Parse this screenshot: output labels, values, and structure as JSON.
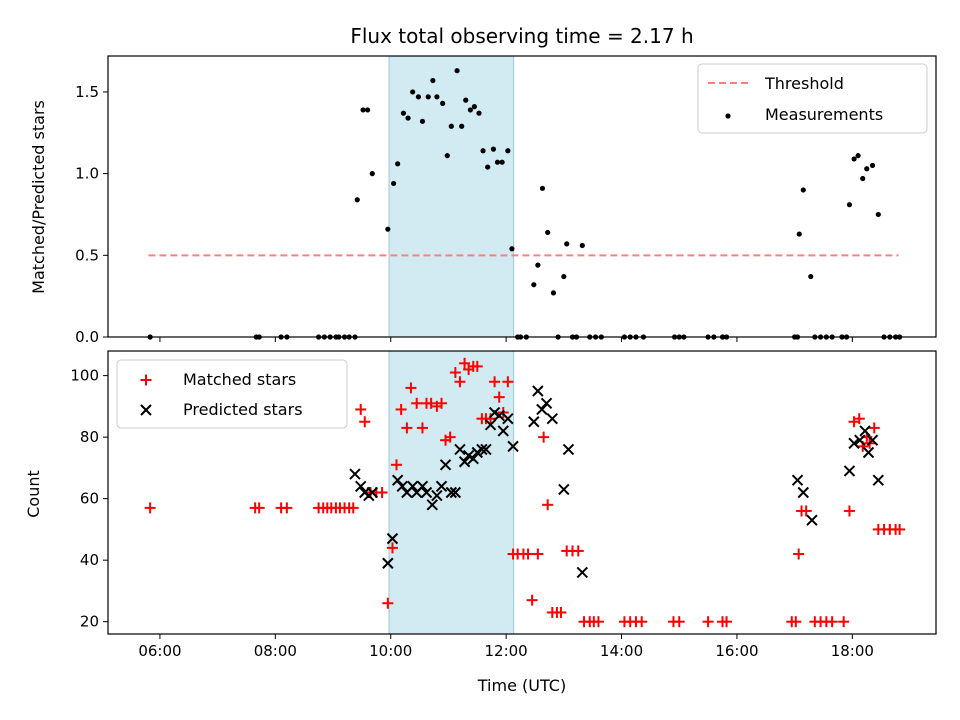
{
  "chart_data": [
    {
      "type": "scatter",
      "title": "Flux total observing time = 2.17 h",
      "ylabel": "Matched/Predicted stars",
      "xlabel": "",
      "ylim": [
        0,
        1.72
      ],
      "yticks": [
        "0.0",
        "0.5",
        "1.0",
        "1.5"
      ],
      "shaded_span": {
        "start_hour": 9.97,
        "end_hour": 12.13,
        "color": "#add8e6"
      },
      "threshold": {
        "name": "Threshold",
        "value": 0.5,
        "x_start_hour": 5.8,
        "x_end_hour": 18.8,
        "color": "#ff7f7f"
      },
      "legend": [
        "Threshold",
        "Measurements"
      ],
      "legend_position": "upper right",
      "series": [
        {
          "name": "Measurements",
          "color": "#000000",
          "points": [
            [
              5.83,
              0
            ],
            [
              7.67,
              0
            ],
            [
              7.72,
              0
            ],
            [
              8.1,
              0
            ],
            [
              8.2,
              0
            ],
            [
              8.75,
              0
            ],
            [
              8.85,
              0
            ],
            [
              8.95,
              0
            ],
            [
              9.05,
              0
            ],
            [
              9.1,
              0
            ],
            [
              9.2,
              0
            ],
            [
              9.28,
              0
            ],
            [
              9.38,
              0
            ],
            [
              9.42,
              0.84
            ],
            [
              9.52,
              1.39
            ],
            [
              9.6,
              1.39
            ],
            [
              9.68,
              1.0
            ],
            [
              9.95,
              0.66
            ],
            [
              10.05,
              0.94
            ],
            [
              10.12,
              1.06
            ],
            [
              10.22,
              1.37
            ],
            [
              10.3,
              1.34
            ],
            [
              10.38,
              1.5
            ],
            [
              10.48,
              1.47
            ],
            [
              10.55,
              1.32
            ],
            [
              10.65,
              1.47
            ],
            [
              10.73,
              1.57
            ],
            [
              10.8,
              1.47
            ],
            [
              10.9,
              1.43
            ],
            [
              10.98,
              1.11
            ],
            [
              11.05,
              1.29
            ],
            [
              11.15,
              1.63
            ],
            [
              11.23,
              1.29
            ],
            [
              11.3,
              1.45
            ],
            [
              11.38,
              1.39
            ],
            [
              11.45,
              1.41
            ],
            [
              11.53,
              1.37
            ],
            [
              11.6,
              1.14
            ],
            [
              11.68,
              1.04
            ],
            [
              11.78,
              1.15
            ],
            [
              11.85,
              1.07
            ],
            [
              11.93,
              1.07
            ],
            [
              12.03,
              1.14
            ],
            [
              12.1,
              0.54
            ],
            [
              12.2,
              0
            ],
            [
              12.25,
              0
            ],
            [
              12.35,
              0
            ],
            [
              12.48,
              0.32
            ],
            [
              12.55,
              0.44
            ],
            [
              12.63,
              0.91
            ],
            [
              12.72,
              0.64
            ],
            [
              12.82,
              0.27
            ],
            [
              12.9,
              0
            ],
            [
              13.0,
              0.37
            ],
            [
              13.05,
              0.57
            ],
            [
              13.15,
              0
            ],
            [
              13.22,
              0
            ],
            [
              13.32,
              0.56
            ],
            [
              13.45,
              0
            ],
            [
              13.55,
              0
            ],
            [
              13.65,
              0
            ],
            [
              14.05,
              0
            ],
            [
              14.15,
              0
            ],
            [
              14.25,
              0
            ],
            [
              14.38,
              0
            ],
            [
              14.92,
              0
            ],
            [
              15.0,
              0
            ],
            [
              15.08,
              0
            ],
            [
              15.5,
              0
            ],
            [
              15.6,
              0
            ],
            [
              15.75,
              0
            ],
            [
              15.82,
              0
            ],
            [
              17.0,
              0
            ],
            [
              17.05,
              0
            ],
            [
              17.08,
              0.63
            ],
            [
              17.15,
              0.9
            ],
            [
              17.28,
              0.37
            ],
            [
              17.35,
              0
            ],
            [
              17.45,
              0
            ],
            [
              17.55,
              0
            ],
            [
              17.65,
              0
            ],
            [
              17.82,
              0
            ],
            [
              17.9,
              0
            ],
            [
              17.95,
              0.81
            ],
            [
              18.03,
              1.09
            ],
            [
              18.1,
              1.11
            ],
            [
              18.18,
              0.97
            ],
            [
              18.25,
              1.03
            ],
            [
              18.35,
              1.05
            ],
            [
              18.45,
              0.75
            ],
            [
              18.55,
              0
            ],
            [
              18.65,
              0
            ],
            [
              18.75,
              0
            ],
            [
              18.82,
              0
            ]
          ]
        }
      ]
    },
    {
      "type": "scatter",
      "title": "",
      "ylabel": "Count",
      "xlabel": "Time (UTC)",
      "ylim": [
        16,
        108
      ],
      "yticks": [
        "20",
        "40",
        "60",
        "80",
        "100"
      ],
      "xticks": [
        "06:00",
        "08:00",
        "10:00",
        "12:00",
        "14:00",
        "16:00",
        "18:00"
      ],
      "xtick_hours": [
        6,
        8,
        10,
        12,
        14,
        16,
        18
      ],
      "xlim_hours": [
        5.1,
        19.45
      ],
      "shaded_span": {
        "start_hour": 9.97,
        "end_hour": 12.13,
        "color": "#add8e6"
      },
      "legend": [
        "Matched stars",
        "Predicted stars"
      ],
      "legend_position": "upper left",
      "series": [
        {
          "name": "Matched stars",
          "marker": "+",
          "color": "#ff0000",
          "points": [
            [
              5.83,
              57
            ],
            [
              7.65,
              57
            ],
            [
              7.72,
              57
            ],
            [
              8.1,
              57
            ],
            [
              8.2,
              57
            ],
            [
              8.75,
              57
            ],
            [
              8.83,
              57
            ],
            [
              8.9,
              57
            ],
            [
              8.97,
              57
            ],
            [
              9.05,
              57
            ],
            [
              9.12,
              57
            ],
            [
              9.2,
              57
            ],
            [
              9.28,
              57
            ],
            [
              9.35,
              57
            ],
            [
              9.48,
              89
            ],
            [
              9.55,
              85
            ],
            [
              9.65,
              62
            ],
            [
              9.75,
              62
            ],
            [
              9.85,
              62
            ],
            [
              9.95,
              26
            ],
            [
              10.03,
              44
            ],
            [
              10.1,
              71
            ],
            [
              10.18,
              89
            ],
            [
              10.28,
              83
            ],
            [
              10.35,
              96
            ],
            [
              10.45,
              91
            ],
            [
              10.55,
              83
            ],
            [
              10.62,
              91
            ],
            [
              10.7,
              91
            ],
            [
              10.8,
              90
            ],
            [
              10.88,
              91
            ],
            [
              10.95,
              79
            ],
            [
              11.03,
              80
            ],
            [
              11.12,
              101
            ],
            [
              11.2,
              98
            ],
            [
              11.28,
              104
            ],
            [
              11.35,
              102
            ],
            [
              11.43,
              103
            ],
            [
              11.5,
              103
            ],
            [
              11.58,
              86
            ],
            [
              11.65,
              86
            ],
            [
              11.73,
              86
            ],
            [
              11.8,
              98
            ],
            [
              11.88,
              93
            ],
            [
              11.95,
              88
            ],
            [
              12.03,
              98
            ],
            [
              12.12,
              42
            ],
            [
              12.2,
              42
            ],
            [
              12.3,
              42
            ],
            [
              12.38,
              42
            ],
            [
              12.45,
              27
            ],
            [
              12.55,
              42
            ],
            [
              12.65,
              80
            ],
            [
              12.72,
              58
            ],
            [
              12.8,
              23
            ],
            [
              12.88,
              23
            ],
            [
              12.95,
              23
            ],
            [
              13.05,
              43
            ],
            [
              13.15,
              43
            ],
            [
              13.25,
              43
            ],
            [
              13.35,
              20
            ],
            [
              13.45,
              20
            ],
            [
              13.52,
              20
            ],
            [
              13.6,
              20
            ],
            [
              14.05,
              20
            ],
            [
              14.15,
              20
            ],
            [
              14.25,
              20
            ],
            [
              14.35,
              20
            ],
            [
              14.9,
              20
            ],
            [
              15.0,
              20
            ],
            [
              15.5,
              20
            ],
            [
              15.75,
              20
            ],
            [
              15.82,
              20
            ],
            [
              16.95,
              20
            ],
            [
              17.02,
              20
            ],
            [
              17.07,
              42
            ],
            [
              17.12,
              56
            ],
            [
              17.2,
              56
            ],
            [
              17.35,
              20
            ],
            [
              17.45,
              20
            ],
            [
              17.55,
              20
            ],
            [
              17.65,
              20
            ],
            [
              17.85,
              20
            ],
            [
              17.95,
              56
            ],
            [
              18.03,
              85
            ],
            [
              18.12,
              86
            ],
            [
              18.18,
              77
            ],
            [
              18.25,
              80
            ],
            [
              18.3,
              78
            ],
            [
              18.38,
              83
            ],
            [
              18.45,
              50
            ],
            [
              18.55,
              50
            ],
            [
              18.65,
              50
            ],
            [
              18.75,
              50
            ],
            [
              18.82,
              50
            ]
          ]
        },
        {
          "name": "Predicted stars",
          "marker": "x",
          "color": "#000000",
          "points": [
            [
              9.38,
              68
            ],
            [
              9.48,
              64
            ],
            [
              9.55,
              62
            ],
            [
              9.62,
              61
            ],
            [
              9.68,
              62
            ],
            [
              9.95,
              39
            ],
            [
              10.03,
              47
            ],
            [
              10.12,
              66
            ],
            [
              10.2,
              64
            ],
            [
              10.28,
              62
            ],
            [
              10.38,
              64
            ],
            [
              10.45,
              62
            ],
            [
              10.55,
              64
            ],
            [
              10.62,
              62
            ],
            [
              10.72,
              58
            ],
            [
              10.8,
              61
            ],
            [
              10.88,
              64
            ],
            [
              10.95,
              71
            ],
            [
              11.05,
              62
            ],
            [
              11.12,
              62
            ],
            [
              11.2,
              76
            ],
            [
              11.28,
              72
            ],
            [
              11.35,
              74
            ],
            [
              11.43,
              73
            ],
            [
              11.5,
              75
            ],
            [
              11.58,
              76
            ],
            [
              11.65,
              76
            ],
            [
              11.73,
              84
            ],
            [
              11.8,
              88
            ],
            [
              11.88,
              87
            ],
            [
              11.95,
              82
            ],
            [
              12.03,
              86
            ],
            [
              12.12,
              77
            ],
            [
              12.48,
              85
            ],
            [
              12.55,
              95
            ],
            [
              12.62,
              89
            ],
            [
              12.7,
              91
            ],
            [
              12.8,
              86
            ],
            [
              13.0,
              63
            ],
            [
              13.08,
              76
            ],
            [
              13.32,
              36
            ],
            [
              17.05,
              66
            ],
            [
              17.15,
              62
            ],
            [
              17.3,
              53
            ],
            [
              17.95,
              69
            ],
            [
              18.03,
              78
            ],
            [
              18.13,
              79
            ],
            [
              18.22,
              82
            ],
            [
              18.28,
              75
            ],
            [
              18.35,
              79
            ],
            [
              18.45,
              66
            ]
          ]
        }
      ]
    }
  ]
}
